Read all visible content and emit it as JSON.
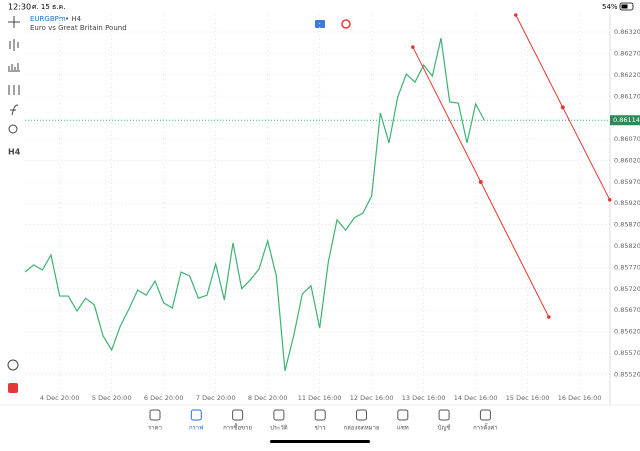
{
  "status_bar": {
    "time": "12:30",
    "date": "ศ. 15 ธ.ค.",
    "battery": "54%"
  },
  "toolbar": {
    "timeframe": "H4"
  },
  "chart_data": {
    "type": "line",
    "title": "EURGBPm",
    "subtitle": "Euro vs Great Britain Pound",
    "timeframe": "• H4",
    "x": [
      0,
      1,
      2,
      3,
      4,
      5,
      6,
      7,
      8,
      9,
      10,
      11,
      12,
      13,
      14,
      15,
      16,
      17,
      18,
      19,
      20,
      21,
      22,
      23,
      24,
      25,
      26,
      27,
      28,
      29,
      30,
      31,
      32,
      33,
      34,
      35,
      36,
      37,
      38,
      39,
      40,
      41,
      42,
      43,
      44,
      45,
      46,
      47,
      48,
      49,
      50,
      51,
      52,
      53
    ],
    "series": [
      {
        "color": "#3cb371",
        "values": [
          0.85759,
          0.85776,
          0.85764,
          0.85799,
          0.85703,
          0.85703,
          0.85668,
          0.85698,
          0.85682,
          0.8561,
          0.85577,
          0.85633,
          0.85673,
          0.85717,
          0.85705,
          0.85738,
          0.85687,
          0.85675,
          0.85759,
          0.8575,
          0.85698,
          0.85705,
          0.85778,
          0.85694,
          0.85827,
          0.8572,
          0.85741,
          0.85766,
          0.85832,
          0.8575,
          0.85528,
          0.8561,
          0.85708,
          0.85727,
          0.85628,
          0.85783,
          0.85881,
          0.85857,
          0.85886,
          0.85897,
          0.85937,
          0.86131,
          0.86061,
          0.86168,
          0.86222,
          0.86203,
          0.86243,
          0.86217,
          0.86306,
          0.86157,
          0.86154,
          0.86061,
          0.86152,
          0.86114
        ]
      }
    ],
    "xlim": [
      0,
      67.5
    ],
    "xticks": [
      {
        "value": 4,
        "label": "4 Dec 20:00"
      },
      {
        "value": 10,
        "label": "5 Dec 20:00"
      },
      {
        "value": 16,
        "label": "6 Dec 20:00"
      },
      {
        "value": 22,
        "label": "7 Dec 20:00"
      },
      {
        "value": 28,
        "label": "8 Dec 20:00"
      },
      {
        "value": 34,
        "label": "11 Dec 16:00"
      },
      {
        "value": 40,
        "label": "12 Dec 16:00"
      },
      {
        "value": 46,
        "label": "13 Dec 16:00"
      },
      {
        "value": 52,
        "label": "14 Dec 16:00"
      },
      {
        "value": 58,
        "label": "15 Dec 16:00"
      },
      {
        "value": 64,
        "label": "16 Dec 16:00"
      }
    ],
    "ylim": [
      0.8546,
      0.8636
    ],
    "yticks": [
      {
        "value": 0.8552,
        "label": "0.85520"
      },
      {
        "value": 0.8557,
        "label": "0.85570"
      },
      {
        "value": 0.8562,
        "label": "0.85620"
      },
      {
        "value": 0.8567,
        "label": "0.85670"
      },
      {
        "value": 0.8572,
        "label": "0.85720"
      },
      {
        "value": 0.8577,
        "label": "0.85770"
      },
      {
        "value": 0.8582,
        "label": "0.85820"
      },
      {
        "value": 0.8587,
        "label": "0.85870"
      },
      {
        "value": 0.8592,
        "label": "0.85920"
      },
      {
        "value": 0.8597,
        "label": "0.85970"
      },
      {
        "value": 0.8602,
        "label": "0.86020"
      },
      {
        "value": 0.8607,
        "label": "0.86070"
      },
      {
        "value": 0.8617,
        "label": "0.86170"
      },
      {
        "value": 0.8622,
        "label": "0.86220"
      },
      {
        "value": 0.8627,
        "label": "0.86270"
      },
      {
        "value": 0.8632,
        "label": "0.86320"
      }
    ],
    "current_price": {
      "value": 0.86114,
      "label": "0.86114"
    },
    "grid": true,
    "trendlines": [
      {
        "color": "#e53935",
        "x": [
          44.75,
          60.44
        ],
        "y": [
          0.86285,
          0.85654
        ]
      },
      {
        "color": "#e53935",
        "x": [
          56.63,
          67.47
        ],
        "y": [
          0.8636,
          0.85928
        ]
      }
    ]
  },
  "nav": [
    "ราคา",
    "กราฟ",
    "การซื้อขาย",
    "ประวัติ",
    "ข่าว",
    "กล่องจดหมาย",
    "แชท",
    "บัญชี",
    "การตั้งค่า"
  ]
}
